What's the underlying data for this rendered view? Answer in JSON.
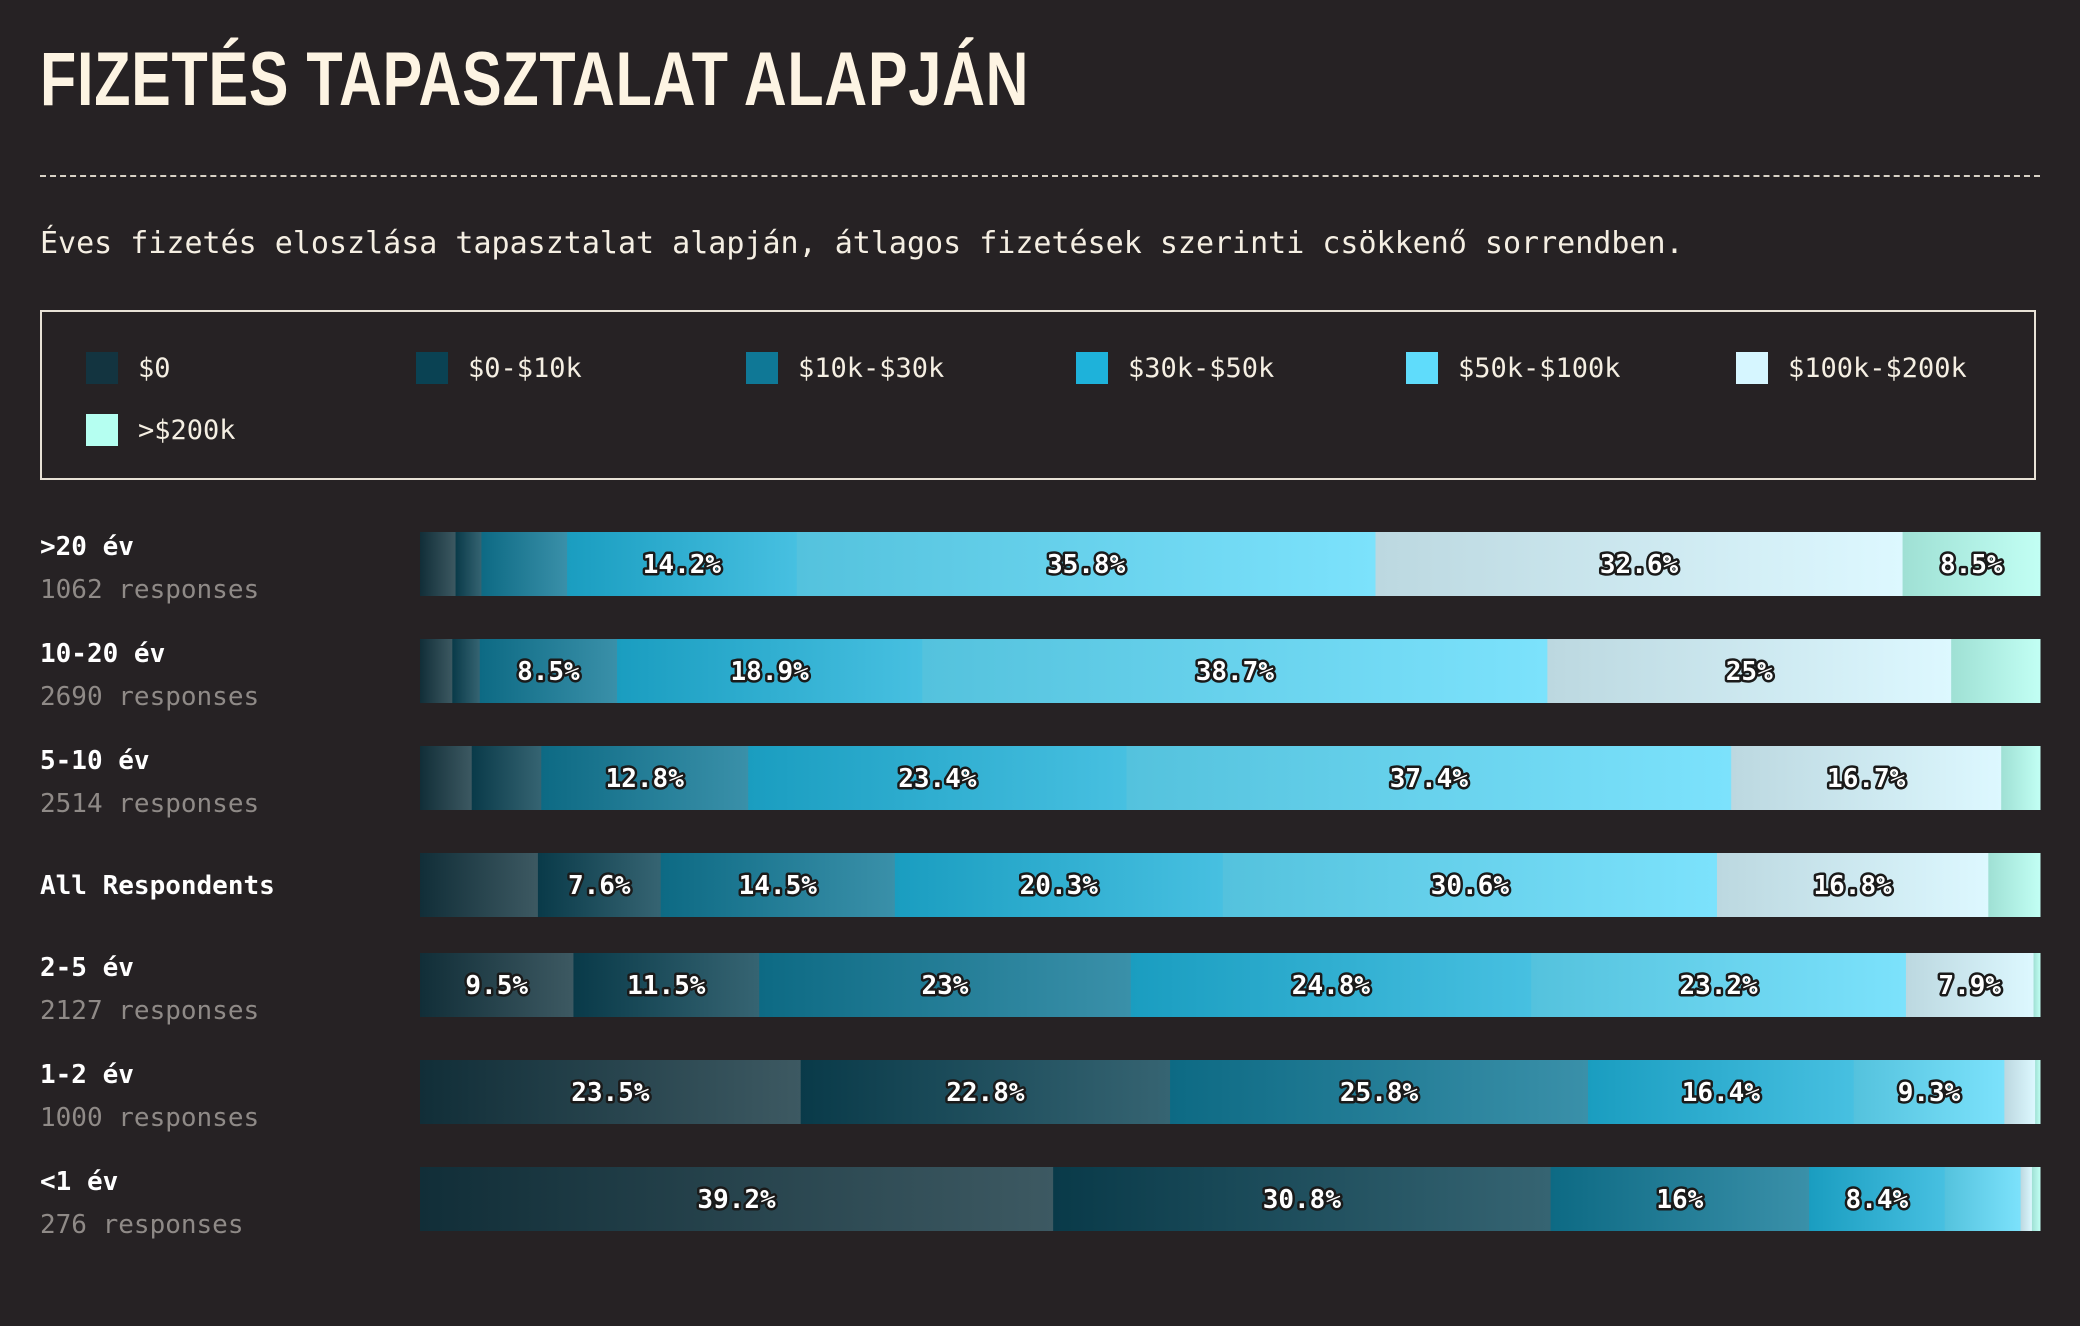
{
  "page": {
    "title": "FIZETÉS TAPASZTALAT ALAPJÁN",
    "subtitle": "Éves fizetés eloszlása tapasztalat alapján, átlagos fizetések szerinti csökkenő sorrendben."
  },
  "legend": [
    {
      "label": "$0",
      "color": "#133440"
    },
    {
      "label": "$0-$10k",
      "color": "#0a4253"
    },
    {
      "label": "$10k-$30k",
      "color": "#0f7896"
    },
    {
      "label": "$30k-$50k",
      "color": "#1eb2da"
    },
    {
      "label": "$50k-$100k",
      "color": "#5fdcfb"
    },
    {
      "label": "$100k-$200k",
      "color": "#d6f6ff"
    },
    {
      "label": ">$200k",
      "color": "#b5fff1"
    }
  ],
  "chart_data": {
    "type": "bar",
    "stacked": true,
    "orientation": "horizontal",
    "title": "FIZETÉS TAPASZTALAT ALAPJÁN",
    "subtitle": "Éves fizetés eloszlása tapasztalat alapján, átlagos fizetések szerinti csökkenő sorrendben.",
    "series_names": [
      "$0",
      "$0-$10k",
      "$10k-$30k",
      "$30k-$50k",
      "$50k-$100k",
      "$100k-$200k",
      ">$200k"
    ],
    "categories": [
      {
        "label": ">20 év",
        "responses": "1062 responses",
        "values": [
          2.2,
          1.6,
          5.3,
          14.2,
          35.8,
          32.6,
          8.5
        ],
        "labels": [
          "",
          "",
          "",
          "14.2%",
          "35.8%",
          "32.6%",
          "8.5%"
        ]
      },
      {
        "label": "10-20 év",
        "responses": "2690 responses",
        "values": [
          2.0,
          1.7,
          8.5,
          18.9,
          38.7,
          25.0,
          5.5
        ],
        "labels": [
          "",
          "",
          "8.5%",
          "18.9%",
          "38.7%",
          "25%",
          ""
        ]
      },
      {
        "label": "5-10 év",
        "responses": "2514 responses",
        "values": [
          3.2,
          4.3,
          12.8,
          23.4,
          37.4,
          16.7,
          2.4
        ],
        "labels": [
          "",
          "",
          "12.8%",
          "23.4%",
          "37.4%",
          "16.7%",
          ""
        ]
      },
      {
        "label": "All Respondents",
        "responses": "",
        "values": [
          7.3,
          7.6,
          14.5,
          20.3,
          30.6,
          16.8,
          3.2
        ],
        "labels": [
          "",
          "7.6%",
          "14.5%",
          "20.3%",
          "30.6%",
          "16.8%",
          ""
        ]
      },
      {
        "label": "2-5 év",
        "responses": "2127 responses",
        "values": [
          9.5,
          11.5,
          23.0,
          24.8,
          23.2,
          7.9,
          0.4
        ],
        "labels": [
          "9.5%",
          "11.5%",
          "23%",
          "24.8%",
          "23.2%",
          "7.9%",
          ""
        ]
      },
      {
        "label": "1-2 év",
        "responses": "1000 responses",
        "values": [
          23.5,
          22.8,
          25.8,
          16.4,
          9.3,
          1.9,
          0.3
        ],
        "labels": [
          "23.5%",
          "22.8%",
          "25.8%",
          "16.4%",
          "9.3%",
          "",
          ""
        ]
      },
      {
        "label": "<1 év",
        "responses": "276 responses",
        "values": [
          39.2,
          30.8,
          16.0,
          8.4,
          4.7,
          0.7,
          0.5
        ],
        "labels": [
          "39.2%",
          "30.8%",
          "16%",
          "8.4%",
          "",
          "",
          ""
        ]
      }
    ],
    "xlim": [
      0,
      100
    ]
  }
}
